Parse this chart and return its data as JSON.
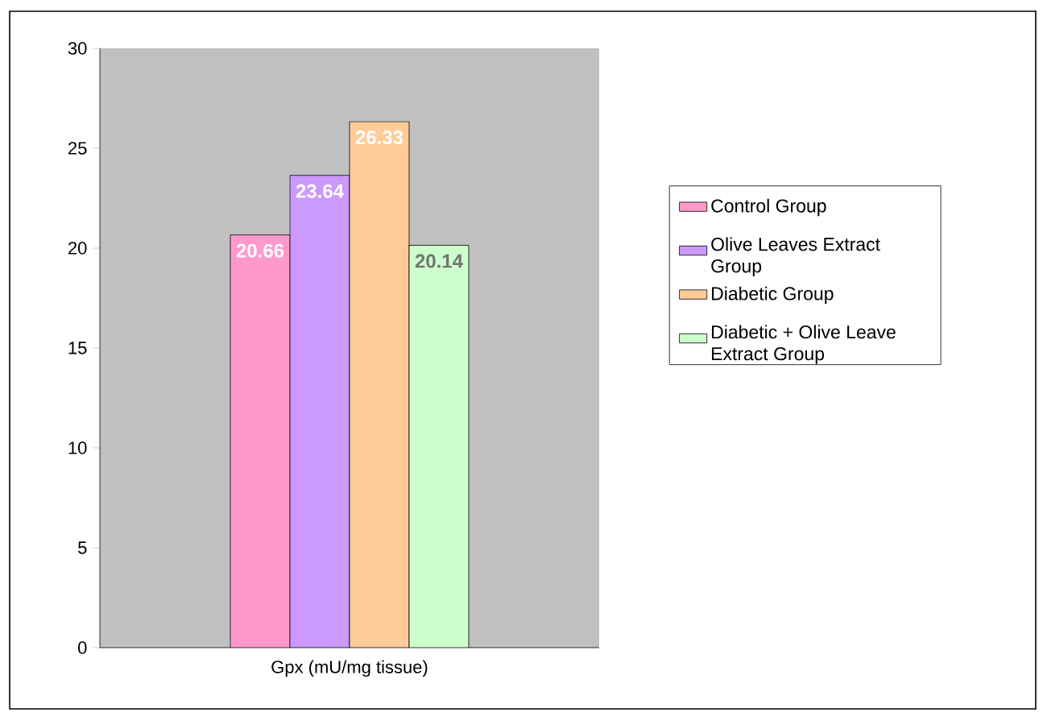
{
  "chart_data": {
    "type": "bar",
    "categories": [
      "Gpx (mU/mg tissue)"
    ],
    "series": [
      {
        "name": "Control Group",
        "color": "#ff99cc",
        "values": [
          20.66
        ]
      },
      {
        "name": "Olive Leaves Extract Group",
        "color": "#cc99ff",
        "values": [
          23.64
        ]
      },
      {
        "name": "Diabetic Group",
        "color": "#ffcc99",
        "values": [
          26.33
        ]
      },
      {
        "name": "Diabetic + Olive Leave Extract Group",
        "color": "#ccffcc",
        "values": [
          20.14
        ]
      }
    ],
    "ylim": [
      0,
      30
    ],
    "yticks": [
      0,
      5,
      10,
      15,
      20,
      25,
      30
    ],
    "data_labels": true,
    "legend": "right"
  }
}
